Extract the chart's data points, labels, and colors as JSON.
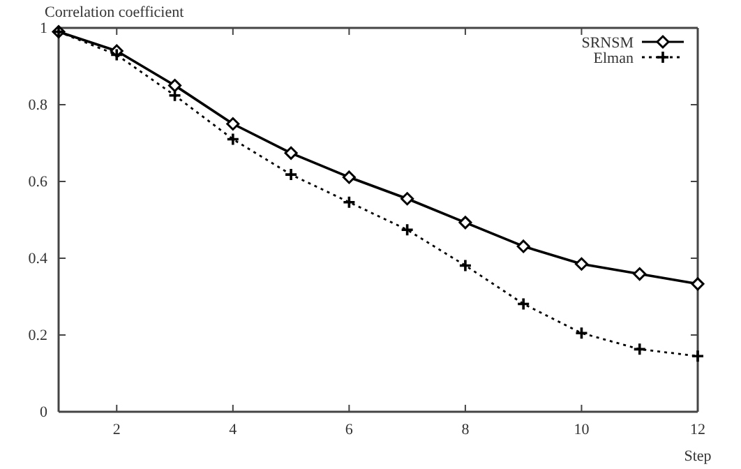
{
  "chart_data": {
    "type": "line",
    "ylabel": "Correlation coefficient",
    "xlabel": "Step",
    "x": [
      1,
      2,
      3,
      4,
      5,
      6,
      7,
      8,
      9,
      10,
      11,
      12
    ],
    "series": [
      {
        "name": "SRNSM",
        "color": "#000000",
        "marker": "diamond",
        "line_style": "solid",
        "values": [
          0.99,
          0.94,
          0.85,
          0.75,
          0.674,
          0.611,
          0.555,
          0.493,
          0.431,
          0.385,
          0.359,
          0.333
        ]
      },
      {
        "name": "Elman",
        "color": "#000000",
        "marker": "cross",
        "line_style": "dotted",
        "values": [
          0.99,
          0.93,
          0.824,
          0.71,
          0.618,
          0.546,
          0.474,
          0.381,
          0.281,
          0.205,
          0.163,
          0.145
        ]
      }
    ],
    "xlim": [
      1,
      12
    ],
    "xticks": [
      2,
      4,
      6,
      8,
      10,
      12
    ],
    "ylim": [
      0,
      1
    ],
    "yticks": [
      0,
      0.2,
      0.4,
      0.6,
      0.8,
      1
    ],
    "grid": false,
    "legend": "top right"
  }
}
